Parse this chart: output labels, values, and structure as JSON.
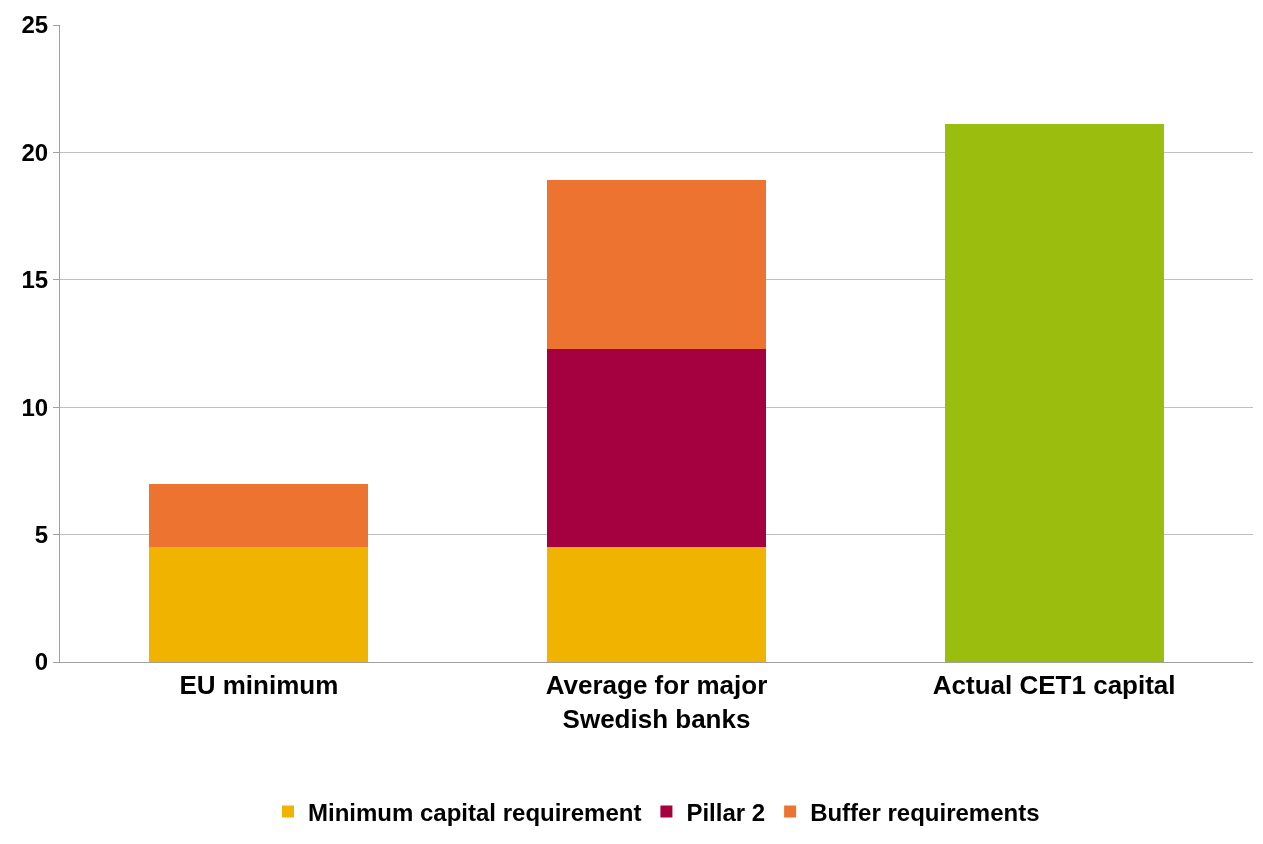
{
  "chart_data": {
    "type": "bar",
    "stacked": true,
    "categories": [
      "EU minimum",
      "Average for major Swedish banks",
      "Actual CET1 capital"
    ],
    "series": [
      {
        "name": "Minimum capital requirement",
        "color": "#f0b400",
        "values": [
          4.5,
          4.5,
          null
        ]
      },
      {
        "name": "Pillar 2",
        "color": "#a50040",
        "values": [
          null,
          7.8,
          null
        ]
      },
      {
        "name": "Buffer requirements",
        "color": "#ec7430",
        "values": [
          2.5,
          6.6,
          null
        ]
      },
      {
        "color": "#9bbe0e",
        "values": [
          null,
          null,
          21.1
        ]
      }
    ],
    "ylim": [
      0,
      25
    ],
    "yticks": [
      0,
      5,
      10,
      15,
      20,
      25
    ],
    "grid": "y",
    "legend": "bottom"
  }
}
